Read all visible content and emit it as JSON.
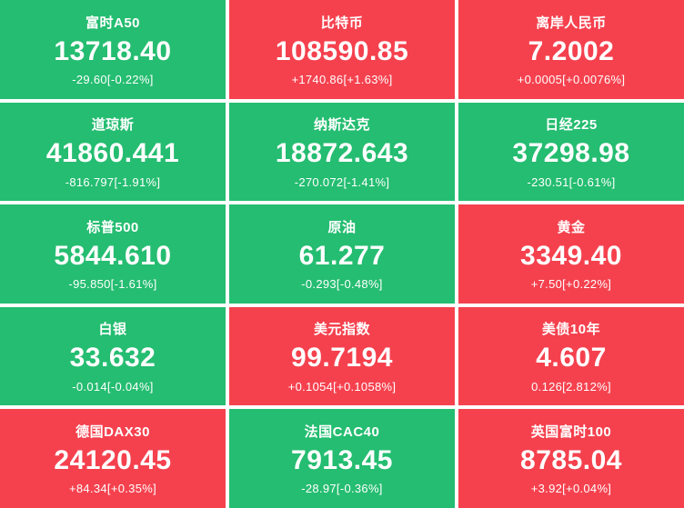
{
  "colors": {
    "up": "#f5414e",
    "down": "#25bd71",
    "text": "#ffffff",
    "gap": "#ffffff"
  },
  "tiles": [
    {
      "name": "富时A50",
      "price": "13718.40",
      "change": "-29.60[-0.22%]",
      "direction": "down"
    },
    {
      "name": "比特币",
      "price": "108590.85",
      "change": "+1740.86[+1.63%]",
      "direction": "up"
    },
    {
      "name": "离岸人民币",
      "price": "7.2002",
      "change": "+0.0005[+0.0076%]",
      "direction": "up"
    },
    {
      "name": "道琼斯",
      "price": "41860.441",
      "change": "-816.797[-1.91%]",
      "direction": "down"
    },
    {
      "name": "纳斯达克",
      "price": "18872.643",
      "change": "-270.072[-1.41%]",
      "direction": "down"
    },
    {
      "name": "日经225",
      "price": "37298.98",
      "change": "-230.51[-0.61%]",
      "direction": "down"
    },
    {
      "name": "标普500",
      "price": "5844.610",
      "change": "-95.850[-1.61%]",
      "direction": "down"
    },
    {
      "name": "原油",
      "price": "61.277",
      "change": "-0.293[-0.48%]",
      "direction": "down"
    },
    {
      "name": "黄金",
      "price": "3349.40",
      "change": "+7.50[+0.22%]",
      "direction": "up"
    },
    {
      "name": "白银",
      "price": "33.632",
      "change": "-0.014[-0.04%]",
      "direction": "down"
    },
    {
      "name": "美元指数",
      "price": "99.7194",
      "change": "+0.1054[+0.1058%]",
      "direction": "up"
    },
    {
      "name": "美债10年",
      "price": "4.607",
      "change": "0.126[2.812%]",
      "direction": "up"
    },
    {
      "name": "德国DAX30",
      "price": "24120.45",
      "change": "+84.34[+0.35%]",
      "direction": "up"
    },
    {
      "name": "法国CAC40",
      "price": "7913.45",
      "change": "-28.97[-0.36%]",
      "direction": "down"
    },
    {
      "name": "英国富时100",
      "price": "8785.04",
      "change": "+3.92[+0.04%]",
      "direction": "up"
    }
  ]
}
